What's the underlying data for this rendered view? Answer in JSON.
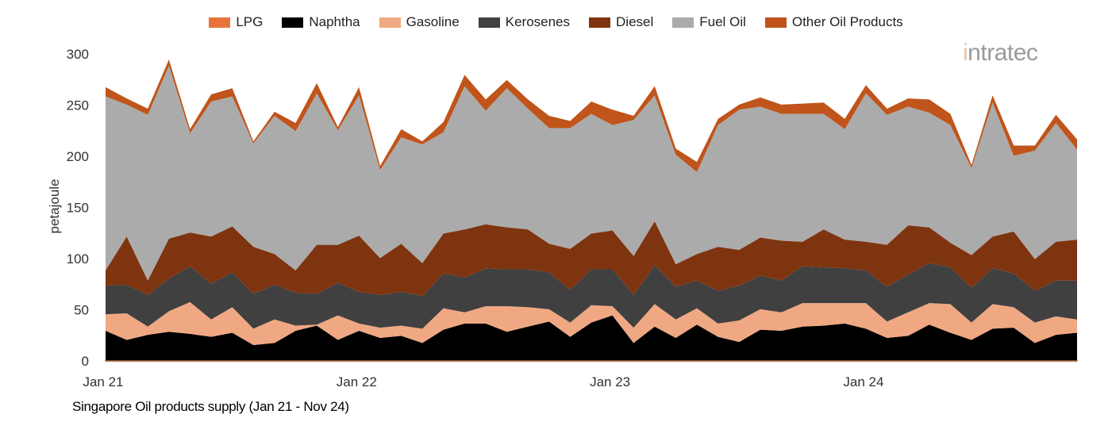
{
  "chart_data": {
    "type": "area",
    "stacked": true,
    "title": "Singapore Oil products supply (Jan 21 - Nov 24)",
    "xlabel": "",
    "ylabel": "petajoule",
    "ylim": [
      0,
      300
    ],
    "yticks": [
      "0",
      "50",
      "100",
      "150",
      "200",
      "250",
      "300"
    ],
    "xticks": [
      "Jan 21",
      "Jan 22",
      "Jan 23",
      "Jan 24"
    ],
    "xtick_index": [
      0,
      12,
      24,
      36
    ],
    "legend_position": "top",
    "grid": false,
    "categories": [
      "Jan 21",
      "Feb 21",
      "Mar 21",
      "Apr 21",
      "May 21",
      "Jun 21",
      "Jul 21",
      "Aug 21",
      "Sep 21",
      "Oct 21",
      "Nov 21",
      "Dec 21",
      "Jan 22",
      "Feb 22",
      "Mar 22",
      "Apr 22",
      "May 22",
      "Jun 22",
      "Jul 22",
      "Aug 22",
      "Sep 22",
      "Oct 22",
      "Nov 22",
      "Dec 22",
      "Jan 23",
      "Feb 23",
      "Mar 23",
      "Apr 23",
      "May 23",
      "Jun 23",
      "Jul 23",
      "Aug 23",
      "Sep 23",
      "Oct 23",
      "Nov 23",
      "Dec 23",
      "Jan 24",
      "Feb 24",
      "Mar 24",
      "Apr 24",
      "May 24",
      "Jun 24",
      "Jul 24",
      "Aug 24",
      "Sep 24",
      "Oct 24",
      "Nov 24"
    ],
    "series": [
      {
        "name": "LPG",
        "color": "#e8743b",
        "values": [
          0.5,
          0.5,
          0.5,
          0.5,
          0.5,
          0.5,
          0.5,
          0.5,
          0.5,
          0.5,
          0.5,
          0.5,
          0.5,
          0.5,
          0.5,
          0.5,
          0.5,
          0.5,
          0.5,
          0.5,
          0.5,
          0.5,
          0.5,
          0.5,
          0.5,
          0.5,
          0.5,
          0.5,
          0.5,
          0.5,
          0.5,
          0.5,
          0.5,
          0.5,
          0.5,
          0.5,
          0.5,
          0.5,
          0.5,
          0.5,
          0.5,
          0.5,
          0.5,
          0.5,
          0.5,
          0.5,
          0.5
        ]
      },
      {
        "name": "Naphtha",
        "color": "#000000",
        "values": [
          29,
          20,
          25,
          28,
          26,
          23,
          27,
          15,
          17,
          29,
          34,
          20,
          29,
          22,
          24,
          17,
          30,
          36,
          36,
          28,
          33,
          38,
          23,
          37,
          44,
          17,
          33,
          22,
          35,
          23,
          18,
          30,
          29,
          33,
          34,
          36,
          31,
          22,
          24,
          35,
          27,
          20,
          31,
          32,
          17,
          25,
          27
        ]
      },
      {
        "name": "Gasoline",
        "color": "#f0a882",
        "values": [
          16,
          26,
          8,
          20,
          31,
          17,
          25,
          16,
          23,
          5,
          1,
          24,
          7,
          10,
          10,
          14,
          21,
          11,
          17,
          25,
          19,
          12,
          14,
          17,
          9,
          15,
          22,
          18,
          16,
          13,
          21,
          20,
          18,
          23,
          22,
          20,
          25,
          16,
          23,
          21,
          28,
          17,
          24,
          20,
          20,
          18,
          13
        ]
      },
      {
        "name": "Kerosenes",
        "color": "#404040",
        "values": [
          28,
          28,
          31,
          32,
          35,
          35,
          34,
          34,
          34,
          32,
          30,
          32,
          31,
          32,
          33,
          32,
          34,
          34,
          37,
          36,
          37,
          36,
          32,
          35,
          36,
          32,
          38,
          32,
          27,
          32,
          34,
          33,
          31,
          36,
          35,
          34,
          32,
          34,
          37,
          39,
          36,
          34,
          35,
          33,
          31,
          35,
          38
        ]
      },
      {
        "name": "Diesel",
        "color": "#7f3410",
        "values": [
          15,
          47,
          14,
          39,
          33,
          46,
          45,
          46,
          30,
          22,
          48,
          37,
          55,
          36,
          47,
          32,
          39,
          47,
          43,
          41,
          39,
          28,
          40,
          35,
          38,
          38,
          43,
          22,
          26,
          43,
          35,
          37,
          39,
          24,
          37,
          28,
          28,
          41,
          48,
          35,
          24,
          32,
          31,
          41,
          31,
          38,
          40
        ]
      },
      {
        "name": "Fuel Oil",
        "color": "#ababab",
        "values": [
          170,
          129,
          162,
          169,
          97,
          132,
          127,
          101,
          135,
          136,
          148,
          112,
          137,
          86,
          104,
          116,
          99,
          140,
          111,
          136,
          118,
          113,
          118,
          117,
          103,
          133,
          123,
          107,
          80,
          119,
          137,
          128,
          124,
          125,
          113,
          108,
          145,
          127,
          116,
          112,
          115,
          85,
          131,
          74,
          106,
          116,
          88
        ]
      },
      {
        "name": "Other Oil Products",
        "color": "#c0541a",
        "values": [
          9,
          6,
          6,
          6,
          4,
          7,
          8,
          2,
          4,
          8,
          10,
          3,
          8,
          4,
          8,
          3,
          10,
          11,
          11,
          8,
          9,
          12,
          7,
          12,
          15,
          4,
          9,
          6,
          10,
          6,
          5,
          9,
          9,
          10,
          11,
          10,
          8,
          6,
          8,
          13,
          11,
          3,
          7,
          10,
          5,
          8,
          10
        ]
      }
    ]
  },
  "logo": {
    "text": "intratec"
  }
}
